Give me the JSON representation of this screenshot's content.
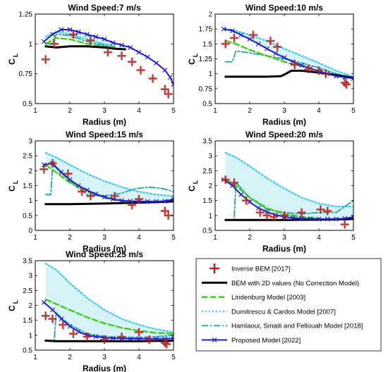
{
  "legend": {
    "entries": [
      "Inverse BEM [2017]",
      "BEM with 2D values (No Correction Model)",
      "Lindenburg Model [2003]",
      "Dumitrescu & Cardos Model [2007]",
      "Hamlaoui, Smaili and Fellouah Model  [2018]",
      "Proposed Model [2022]"
    ]
  },
  "colors": {
    "inverse_bem": "#b22222",
    "bem_2d": "#000000",
    "lindenburg": "#44cc22",
    "dumitrescu": "#55ccee",
    "hamlaoui": "#33aaaa",
    "proposed": "#1f1fd0",
    "band": "#d6f4f8"
  },
  "chart_data": [
    {
      "type": "line",
      "title": "Wind Speed:7 m/s",
      "xlabel": "Radius (m)",
      "ylabel": "C",
      "ylabel_sub": "L",
      "xlim": [
        1,
        5
      ],
      "ylim": [
        0.5,
        1.25
      ],
      "xticks": [
        1,
        2,
        3,
        4,
        5
      ],
      "yticks": [
        0.5,
        0.75,
        1,
        1.25
      ],
      "ytick_labels": [
        "0.5",
        "0.75",
        "1",
        "1.25"
      ],
      "series": [
        {
          "name": "Inverse BEM [2017]",
          "x": [
            1.3,
            1.55,
            2.1,
            2.6,
            3.1,
            3.5,
            3.8,
            4.05,
            4.4,
            4.75,
            4.85
          ],
          "y": [
            0.87,
            1.0,
            1.08,
            1.03,
            0.93,
            0.9,
            0.85,
            0.78,
            0.71,
            0.62,
            0.58
          ]
        },
        {
          "name": "BEM with 2D values (No Correction Model)",
          "x": [
            1.3,
            1.6,
            2.0,
            2.5,
            3.0,
            3.3,
            3.6
          ],
          "y": [
            0.98,
            0.97,
            0.98,
            0.98,
            0.97,
            0.96,
            0.955
          ]
        },
        {
          "name": "Lindenburg Model [2003]",
          "x": [
            1.3,
            1.6,
            2.0,
            2.5,
            3.0,
            3.3
          ],
          "y": [
            1.0,
            1.05,
            1.04,
            1.0,
            0.98,
            0.97
          ]
        },
        {
          "name": "Dumitrescu & Cardos Model [2007]",
          "x": [
            1.3,
            1.6,
            2.0,
            2.5,
            3.0,
            3.3
          ],
          "y": [
            1.06,
            1.1,
            1.08,
            1.04,
            1.0,
            0.98
          ]
        },
        {
          "name": "Hamlaoui, Smaili and Fellouah Model  [2018]",
          "x": [
            1.3,
            1.5,
            1.6,
            2.0,
            2.5,
            3.0,
            3.3
          ],
          "y": [
            1.0,
            1.0,
            1.08,
            1.07,
            1.02,
            0.99,
            0.97
          ]
        },
        {
          "name": "Proposed Model [2022]",
          "x": [
            1.25,
            1.5,
            1.75,
            2.0,
            2.25,
            2.5,
            2.75,
            3.0,
            3.25,
            3.5,
            3.75,
            4.0,
            4.25,
            4.5,
            4.75,
            4.9,
            5.0
          ],
          "y": [
            1.02,
            1.08,
            1.12,
            1.12,
            1.1,
            1.08,
            1.06,
            1.04,
            1.01,
            0.99,
            0.97,
            0.93,
            0.89,
            0.84,
            0.78,
            0.72,
            0.66
          ]
        }
      ]
    },
    {
      "type": "line",
      "title": "Wind Speed:10 m/s",
      "xlabel": "Radius (m)",
      "ylabel": "C",
      "ylabel_sub": "L",
      "xlim": [
        1,
        5
      ],
      "ylim": [
        0.5,
        2
      ],
      "xticks": [
        1,
        2,
        3,
        4,
        5
      ],
      "yticks": [
        0.5,
        0.75,
        1,
        1.25,
        1.5,
        1.75,
        2
      ],
      "ytick_labels": [
        "0.5",
        "0.75",
        "1",
        "1.25",
        "1.5",
        "1.75",
        "2"
      ],
      "series": [
        {
          "name": "Inverse BEM [2017]",
          "x": [
            1.3,
            1.55,
            2.1,
            2.6,
            2.8,
            3.3,
            3.7,
            4.0,
            4.2,
            4.75,
            4.8
          ],
          "y": [
            1.5,
            1.6,
            1.65,
            1.55,
            1.45,
            1.15,
            1.08,
            1.05,
            1.0,
            0.85,
            0.82
          ]
        },
        {
          "name": "BEM with 2D values (No Correction Model)",
          "x": [
            1.3,
            1.6,
            2.0,
            2.5,
            2.9,
            3.05,
            3.2,
            3.5,
            4.0,
            4.5,
            5.0
          ],
          "y": [
            0.95,
            0.95,
            0.95,
            0.95,
            0.96,
            1.0,
            1.05,
            1.05,
            1.02,
            0.98,
            0.93
          ]
        },
        {
          "name": "Lindenburg Model [2003]",
          "x": [
            1.3,
            1.6,
            2.0,
            2.5,
            3.0,
            3.3,
            3.6
          ],
          "y": [
            1.55,
            1.5,
            1.4,
            1.3,
            1.2,
            1.15,
            1.12
          ]
        },
        {
          "name": "Dumitrescu & Cardos Model [2007]",
          "x": [
            1.3,
            1.6,
            2.0,
            2.5,
            3.0,
            3.5,
            4.0,
            4.5,
            5.0
          ],
          "y": [
            1.75,
            1.72,
            1.65,
            1.55,
            1.42,
            1.3,
            1.18,
            1.05,
            0.95
          ]
        },
        {
          "name": "Hamlaoui, Smaili and Fellouah Model  [2018]",
          "x": [
            1.3,
            1.5,
            1.6,
            2.0,
            2.5,
            3.0,
            3.5,
            4.0,
            4.5,
            5.0
          ],
          "y": [
            1.2,
            1.2,
            1.38,
            1.35,
            1.3,
            1.25,
            1.18,
            1.1,
            1.0,
            0.93
          ]
        },
        {
          "name": "Proposed Model [2022]",
          "x": [
            1.25,
            1.5,
            1.75,
            2.0,
            2.25,
            2.5,
            2.75,
            3.0,
            3.25,
            3.5,
            3.75,
            4.0,
            4.25,
            4.5,
            4.75,
            5.0
          ],
          "y": [
            1.75,
            1.72,
            1.65,
            1.58,
            1.5,
            1.42,
            1.34,
            1.27,
            1.2,
            1.14,
            1.09,
            1.04,
            1.0,
            0.96,
            0.94,
            0.92
          ]
        }
      ]
    },
    {
      "type": "line",
      "title": "Wind Speed:15 m/s",
      "xlabel": "Radius (m)",
      "ylabel": "C",
      "ylabel_sub": "L",
      "xlim": [
        1,
        5
      ],
      "ylim": [
        0,
        3
      ],
      "xticks": [
        1,
        2,
        3,
        4,
        5
      ],
      "yticks": [
        0,
        0.5,
        1,
        1.5,
        2,
        2.5,
        3
      ],
      "ytick_labels": [
        "0",
        "0.5",
        "1",
        "1.5",
        "2",
        "2.5",
        "3"
      ],
      "series": [
        {
          "name": "Inverse BEM [2017]",
          "x": [
            1.25,
            1.5,
            1.95,
            2.35,
            2.6,
            3.3,
            3.8,
            4.0,
            4.75,
            4.85
          ],
          "y": [
            2.05,
            2.25,
            1.9,
            1.3,
            1.15,
            1.15,
            0.85,
            1.05,
            0.65,
            0.5
          ]
        },
        {
          "name": "BEM with 2D values (No Correction Model)",
          "x": [
            1.3,
            2.0,
            3.0,
            4.0,
            5.0
          ],
          "y": [
            0.88,
            0.88,
            0.9,
            0.93,
            0.97
          ]
        },
        {
          "name": "Lindenburg Model [2003]",
          "x": [
            1.3,
            1.6,
            2.0,
            2.5,
            3.0,
            3.3,
            3.6
          ],
          "y": [
            2.2,
            1.95,
            1.6,
            1.3,
            1.1,
            1.02,
            0.97
          ]
        },
        {
          "name": "Dumitrescu & Cardos Model [2007]",
          "x": [
            1.3,
            1.6,
            2.0,
            2.5,
            3.0,
            3.5,
            4.0,
            4.5,
            5.0
          ],
          "y": [
            2.6,
            2.45,
            2.2,
            1.9,
            1.65,
            1.45,
            1.3,
            1.2,
            1.15
          ]
        },
        {
          "name": "Hamlaoui, Smaili and Fellouah Model  [2018]",
          "x": [
            1.3,
            1.45,
            1.5,
            2.0,
            2.5,
            3.0,
            3.5,
            3.9,
            4.3,
            4.7,
            5.0
          ],
          "y": [
            1.2,
            1.2,
            2.2,
            1.65,
            1.2,
            1.15,
            1.25,
            1.4,
            1.45,
            1.4,
            1.3
          ]
        },
        {
          "name": "Proposed Model [2022]",
          "x": [
            1.25,
            1.5,
            1.75,
            2.0,
            2.25,
            2.5,
            2.75,
            3.0,
            3.25,
            3.5,
            3.75,
            4.0,
            4.25,
            4.5,
            4.75,
            5.0
          ],
          "y": [
            2.2,
            2.25,
            1.95,
            1.7,
            1.5,
            1.35,
            1.22,
            1.12,
            1.05,
            1.0,
            0.98,
            0.97,
            0.97,
            0.97,
            0.98,
            1.05
          ]
        }
      ]
    },
    {
      "type": "line",
      "title": "Wind Speed:20 m/s",
      "xlabel": "Radius (m)",
      "ylabel": "C",
      "ylabel_sub": "L",
      "xlim": [
        1,
        5
      ],
      "ylim": [
        0.5,
        3.5
      ],
      "xticks": [
        1,
        2,
        3,
        4,
        5
      ],
      "yticks": [
        0.5,
        1,
        1.5,
        2,
        2.5,
        3,
        3.5
      ],
      "ytick_labels": [
        "0.5",
        "1",
        "1.5",
        "2",
        "2.5",
        "3",
        "3.5"
      ],
      "series": [
        {
          "name": "Inverse BEM [2017]",
          "x": [
            1.3,
            1.55,
            1.9,
            2.3,
            2.5,
            2.7,
            3.0,
            3.5,
            4.05,
            4.25,
            4.75
          ],
          "y": [
            2.2,
            2.1,
            1.5,
            1.1,
            1.0,
            0.95,
            1.0,
            1.1,
            1.2,
            1.15,
            0.7
          ]
        },
        {
          "name": "BEM with 2D values (No Correction Model)",
          "x": [
            1.3,
            2.0,
            3.0,
            4.0,
            5.0
          ],
          "y": [
            0.85,
            0.85,
            0.85,
            0.86,
            0.88
          ]
        },
        {
          "name": "Lindenburg Model [2003]",
          "x": [
            1.3,
            1.6,
            2.0,
            2.5,
            3.0,
            3.5,
            4.0
          ],
          "y": [
            2.2,
            2.0,
            1.6,
            1.25,
            1.05,
            0.95,
            0.9
          ]
        },
        {
          "name": "Dumitrescu & Cardos Model [2007]",
          "x": [
            1.3,
            1.6,
            2.0,
            2.5,
            3.0,
            3.5,
            4.0,
            4.5,
            5.0
          ],
          "y": [
            3.1,
            2.95,
            2.65,
            2.25,
            1.9,
            1.6,
            1.4,
            1.3,
            1.3
          ]
        },
        {
          "name": "Hamlaoui, Smaili and Fellouah Model  [2018]",
          "x": [
            1.3,
            1.55,
            1.6,
            2.0,
            2.5,
            3.0,
            3.5,
            4.0,
            4.5,
            5.0
          ],
          "y": [
            0.85,
            0.85,
            2.1,
            1.6,
            1.2,
            1.1,
            1.05,
            1.1,
            1.1,
            1.5
          ]
        },
        {
          "name": "Proposed Model [2022]",
          "x": [
            1.25,
            1.5,
            1.75,
            2.0,
            2.25,
            2.5,
            2.75,
            3.0,
            3.25,
            3.5,
            3.75,
            4.0,
            4.25,
            4.5,
            4.75,
            5.0
          ],
          "y": [
            2.2,
            2.0,
            1.7,
            1.45,
            1.25,
            1.12,
            1.02,
            0.95,
            0.92,
            0.9,
            0.89,
            0.88,
            0.88,
            0.88,
            0.9,
            0.95
          ]
        }
      ]
    },
    {
      "type": "line",
      "title": "Wind Speed:25 m/s",
      "xlabel": "Radius (m)",
      "ylabel": "C",
      "ylabel_sub": "L",
      "xlim": [
        1,
        5
      ],
      "ylim": [
        0.5,
        3.5
      ],
      "xticks": [
        1,
        2,
        3,
        4,
        5
      ],
      "yticks": [
        0.5,
        1,
        1.5,
        2,
        2.5,
        3,
        3.5
      ],
      "ytick_labels": [
        "0.5",
        "1",
        "1.5",
        "2",
        "2.5",
        "3",
        "3.5"
      ],
      "series": [
        {
          "name": "Inverse BEM [2017]",
          "x": [
            1.3,
            1.5,
            1.8,
            2.1,
            2.5,
            3.0,
            3.5,
            4.0,
            4.3,
            4.75,
            4.8
          ],
          "y": [
            1.65,
            1.55,
            1.35,
            1.05,
            0.95,
            0.85,
            0.95,
            1.1,
            0.85,
            0.75,
            0.7
          ]
        },
        {
          "name": "BEM with 2D values (No Correction Model)",
          "x": [
            1.3,
            1.6,
            2.0,
            3.0,
            4.0,
            5.0
          ],
          "y": [
            0.82,
            0.8,
            0.8,
            0.8,
            0.8,
            0.82
          ]
        },
        {
          "name": "Lindenburg Model [2003]",
          "x": [
            1.3,
            1.6,
            2.0,
            2.5,
            3.0,
            3.5,
            4.0,
            4.5,
            5.0
          ],
          "y": [
            2.2,
            2.05,
            1.85,
            1.6,
            1.4,
            1.25,
            1.15,
            1.08,
            1.05
          ]
        },
        {
          "name": "Dumitrescu & Cardos Model [2007]",
          "x": [
            1.3,
            1.6,
            2.0,
            2.5,
            3.0,
            3.5,
            4.0,
            4.5,
            5.0
          ],
          "y": [
            3.4,
            3.2,
            2.75,
            2.25,
            1.85,
            1.55,
            1.35,
            1.2,
            1.1
          ]
        },
        {
          "name": "Hamlaoui, Smaili and Fellouah Model  [2018]",
          "x": [
            1.3,
            1.55,
            1.6,
            2.0,
            2.5,
            3.0,
            3.5,
            4.0,
            4.5,
            5.0
          ],
          "y": [
            0.82,
            0.82,
            1.75,
            1.35,
            1.05,
            0.95,
            0.92,
            0.92,
            0.95,
            1.0
          ]
        },
        {
          "name": "Proposed Model [2022]",
          "x": [
            1.25,
            1.5,
            1.75,
            2.0,
            2.25,
            2.5,
            2.75,
            3.0,
            3.25,
            3.5,
            3.75,
            4.0,
            4.25,
            4.5,
            4.75,
            5.0
          ],
          "y": [
            2.1,
            1.85,
            1.55,
            1.3,
            1.12,
            1.0,
            0.95,
            0.92,
            0.9,
            0.89,
            0.88,
            0.88,
            0.88,
            0.88,
            0.88,
            0.9
          ]
        }
      ]
    }
  ]
}
